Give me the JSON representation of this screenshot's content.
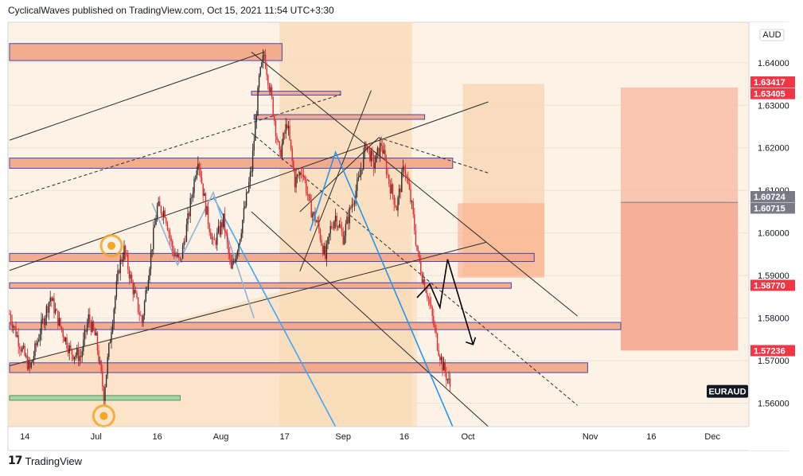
{
  "header": {
    "text": "CyclicalWaves published on TradingView.com, Oct 15, 2021 11:54 UTC+3:30"
  },
  "footer": {
    "brand": "TradingView",
    "logo_icon": "tradingview-logo-icon"
  },
  "colors": {
    "candle_up": "#2b2b2b",
    "candle_down": "#e5282b",
    "zone_fill": "#f4a98a",
    "zone_border": "#3b3fb0",
    "channel_fill": "#fbdcb8",
    "accent_red": "#f23645",
    "price_tag_gray": "#787b86",
    "projection_line": "#2196f3"
  },
  "chart_data": {
    "type": "candlestick",
    "symbol": "EURAUD",
    "currency": "AUD",
    "y_ticks": [
      "1.64000",
      "1.63000",
      "1.62000",
      "1.61000",
      "1.60000",
      "1.59000",
      "1.58000",
      "1.57000",
      "1.56000"
    ],
    "ylim": [
      1.5545,
      1.6495
    ],
    "x_ticks": [
      "14",
      "Jul",
      "16",
      "Aug",
      "17",
      "Sep",
      "16",
      "Oct",
      "Nov",
      "16",
      "Dec"
    ],
    "price_labels": [
      {
        "value": "1.63417",
        "color": "#f23645"
      },
      {
        "value": "1.63405",
        "color": "#f23645"
      },
      {
        "value": "1.60724",
        "color": "#787b86"
      },
      {
        "value": "1.60715",
        "color": "#787b86"
      },
      {
        "value": "1.58770",
        "color": "#f23645"
      },
      {
        "value": "1.57236",
        "color": "#f23645"
      }
    ],
    "path_key": [
      [
        0,
        1.581
      ],
      [
        4,
        1.574
      ],
      [
        8,
        1.568
      ],
      [
        12,
        1.577
      ],
      [
        16,
        1.585
      ],
      [
        20,
        1.578
      ],
      [
        24,
        1.572
      ],
      [
        28,
        1.571
      ],
      [
        31,
        1.58
      ],
      [
        34,
        1.575
      ],
      [
        37,
        1.562
      ],
      [
        40,
        1.578
      ],
      [
        43,
        1.592
      ],
      [
        45,
        1.596
      ],
      [
        48,
        1.588
      ],
      [
        52,
        1.579
      ],
      [
        55,
        1.593
      ],
      [
        58,
        1.606
      ],
      [
        61,
        1.605
      ],
      [
        64,
        1.596
      ],
      [
        67,
        1.593
      ],
      [
        70,
        1.603
      ],
      [
        74,
        1.618
      ],
      [
        77,
        1.606
      ],
      [
        80,
        1.597
      ],
      [
        84,
        1.603
      ],
      [
        87,
        1.591
      ],
      [
        90,
        1.598
      ],
      [
        93,
        1.608
      ],
      [
        95,
        1.615
      ],
      [
        98,
        1.636
      ],
      [
        100,
        1.642
      ],
      [
        103,
        1.631
      ],
      [
        106,
        1.618
      ],
      [
        109,
        1.626
      ],
      [
        112,
        1.612
      ],
      [
        115,
        1.615
      ],
      [
        118,
        1.606
      ],
      [
        121,
        1.602
      ],
      [
        124,
        1.594
      ],
      [
        126,
        1.601
      ],
      [
        128,
        1.604
      ],
      [
        131,
        1.599
      ],
      [
        134,
        1.606
      ],
      [
        137,
        1.612
      ],
      [
        140,
        1.621
      ],
      [
        143,
        1.616
      ],
      [
        146,
        1.621
      ],
      [
        149,
        1.612
      ],
      [
        152,
        1.606
      ],
      [
        155,
        1.616
      ],
      [
        158,
        1.606
      ],
      [
        160,
        1.596
      ],
      [
        162,
        1.59
      ],
      [
        164,
        1.586
      ],
      [
        166,
        1.58
      ],
      [
        168,
        1.574
      ],
      [
        170,
        1.569
      ],
      [
        173,
        1.564
      ]
    ],
    "price_overlays": {
      "zones": [
        {
          "d0": 0,
          "d1": 107,
          "p0": 1.6445,
          "p1": 1.6405
        },
        {
          "d0": 0,
          "d1": 174,
          "p0": 1.6176,
          "p1": 1.6152
        },
        {
          "d0": 0,
          "d1": 206,
          "p0": 1.5952,
          "p1": 1.5933
        },
        {
          "d0": 0,
          "d1": 197,
          "p0": 1.5883,
          "p1": 1.587
        },
        {
          "d0": 0,
          "d1": 240,
          "p0": 1.579,
          "p1": 1.5773
        },
        {
          "d0": 0,
          "d1": 227,
          "p0": 1.5695,
          "p1": 1.5672
        },
        {
          "d0": 95,
          "d1": 130,
          "p0": 1.6333,
          "p1": 1.6324
        },
        {
          "d0": 96,
          "d1": 163,
          "p0": 1.6278,
          "p1": 1.6267
        }
      ],
      "green_zone": {
        "d0": 0,
        "d1": 67,
        "p0": 1.5618,
        "p1": 1.5607
      },
      "lines": [
        {
          "a": [
            0,
            1.6218
          ],
          "b": [
            100,
            1.6425
          ],
          "style": "solid"
        },
        {
          "a": [
            0,
            1.608
          ],
          "b": [
            130,
            1.6325
          ],
          "style": "dashed"
        },
        {
          "a": [
            0,
            1.5912
          ],
          "b": [
            188,
            1.6308
          ],
          "style": "solid"
        },
        {
          "a": [
            0,
            1.5688
          ],
          "b": [
            187,
            1.5978
          ],
          "style": "solid"
        },
        {
          "a": [
            95,
            1.6425
          ],
          "b": [
            223,
            1.5805
          ],
          "style": "solid"
        },
        {
          "a": [
            95,
            1.6235
          ],
          "b": [
            223,
            1.5595
          ],
          "style": "dashed"
        },
        {
          "a": [
            95,
            1.605
          ],
          "b": [
            188,
            1.5545
          ],
          "style": "solid"
        },
        {
          "a": [
            114,
            1.591
          ],
          "b": [
            142,
            1.6335
          ],
          "style": "solid"
        },
        {
          "a": [
            114,
            1.605
          ],
          "b": [
            145,
            1.6224
          ],
          "style": "solid"
        },
        {
          "a": [
            145,
            1.6224
          ],
          "b": [
            188,
            1.6141
          ],
          "style": "dashed"
        }
      ],
      "projection_lines": [
        {
          "a": [
            128,
            1.619
          ],
          "b": [
            174,
            1.5545
          ]
        },
        {
          "a": [
            80,
            1.6085
          ],
          "b": [
            128,
            1.5545
          ]
        }
      ],
      "zigzag_blue_light": [
        [
          56,
          1.607
        ],
        [
          66,
          1.5925
        ],
        [
          80,
          1.6095
        ],
        [
          96,
          1.58
        ]
      ],
      "zigzag_blue_dark": [
        [
          118,
          1.6005
        ],
        [
          128,
          1.619
        ]
      ],
      "arrow_forecast": [
        [
          160,
          1.5848
        ],
        [
          165,
          1.588
        ],
        [
          169,
          1.5825
        ],
        [
          172,
          1.5938
        ],
        [
          182,
          1.5738
        ]
      ],
      "circles": [
        [
          40,
          1.597
        ],
        [
          37,
          1.557
        ]
      ]
    }
  }
}
